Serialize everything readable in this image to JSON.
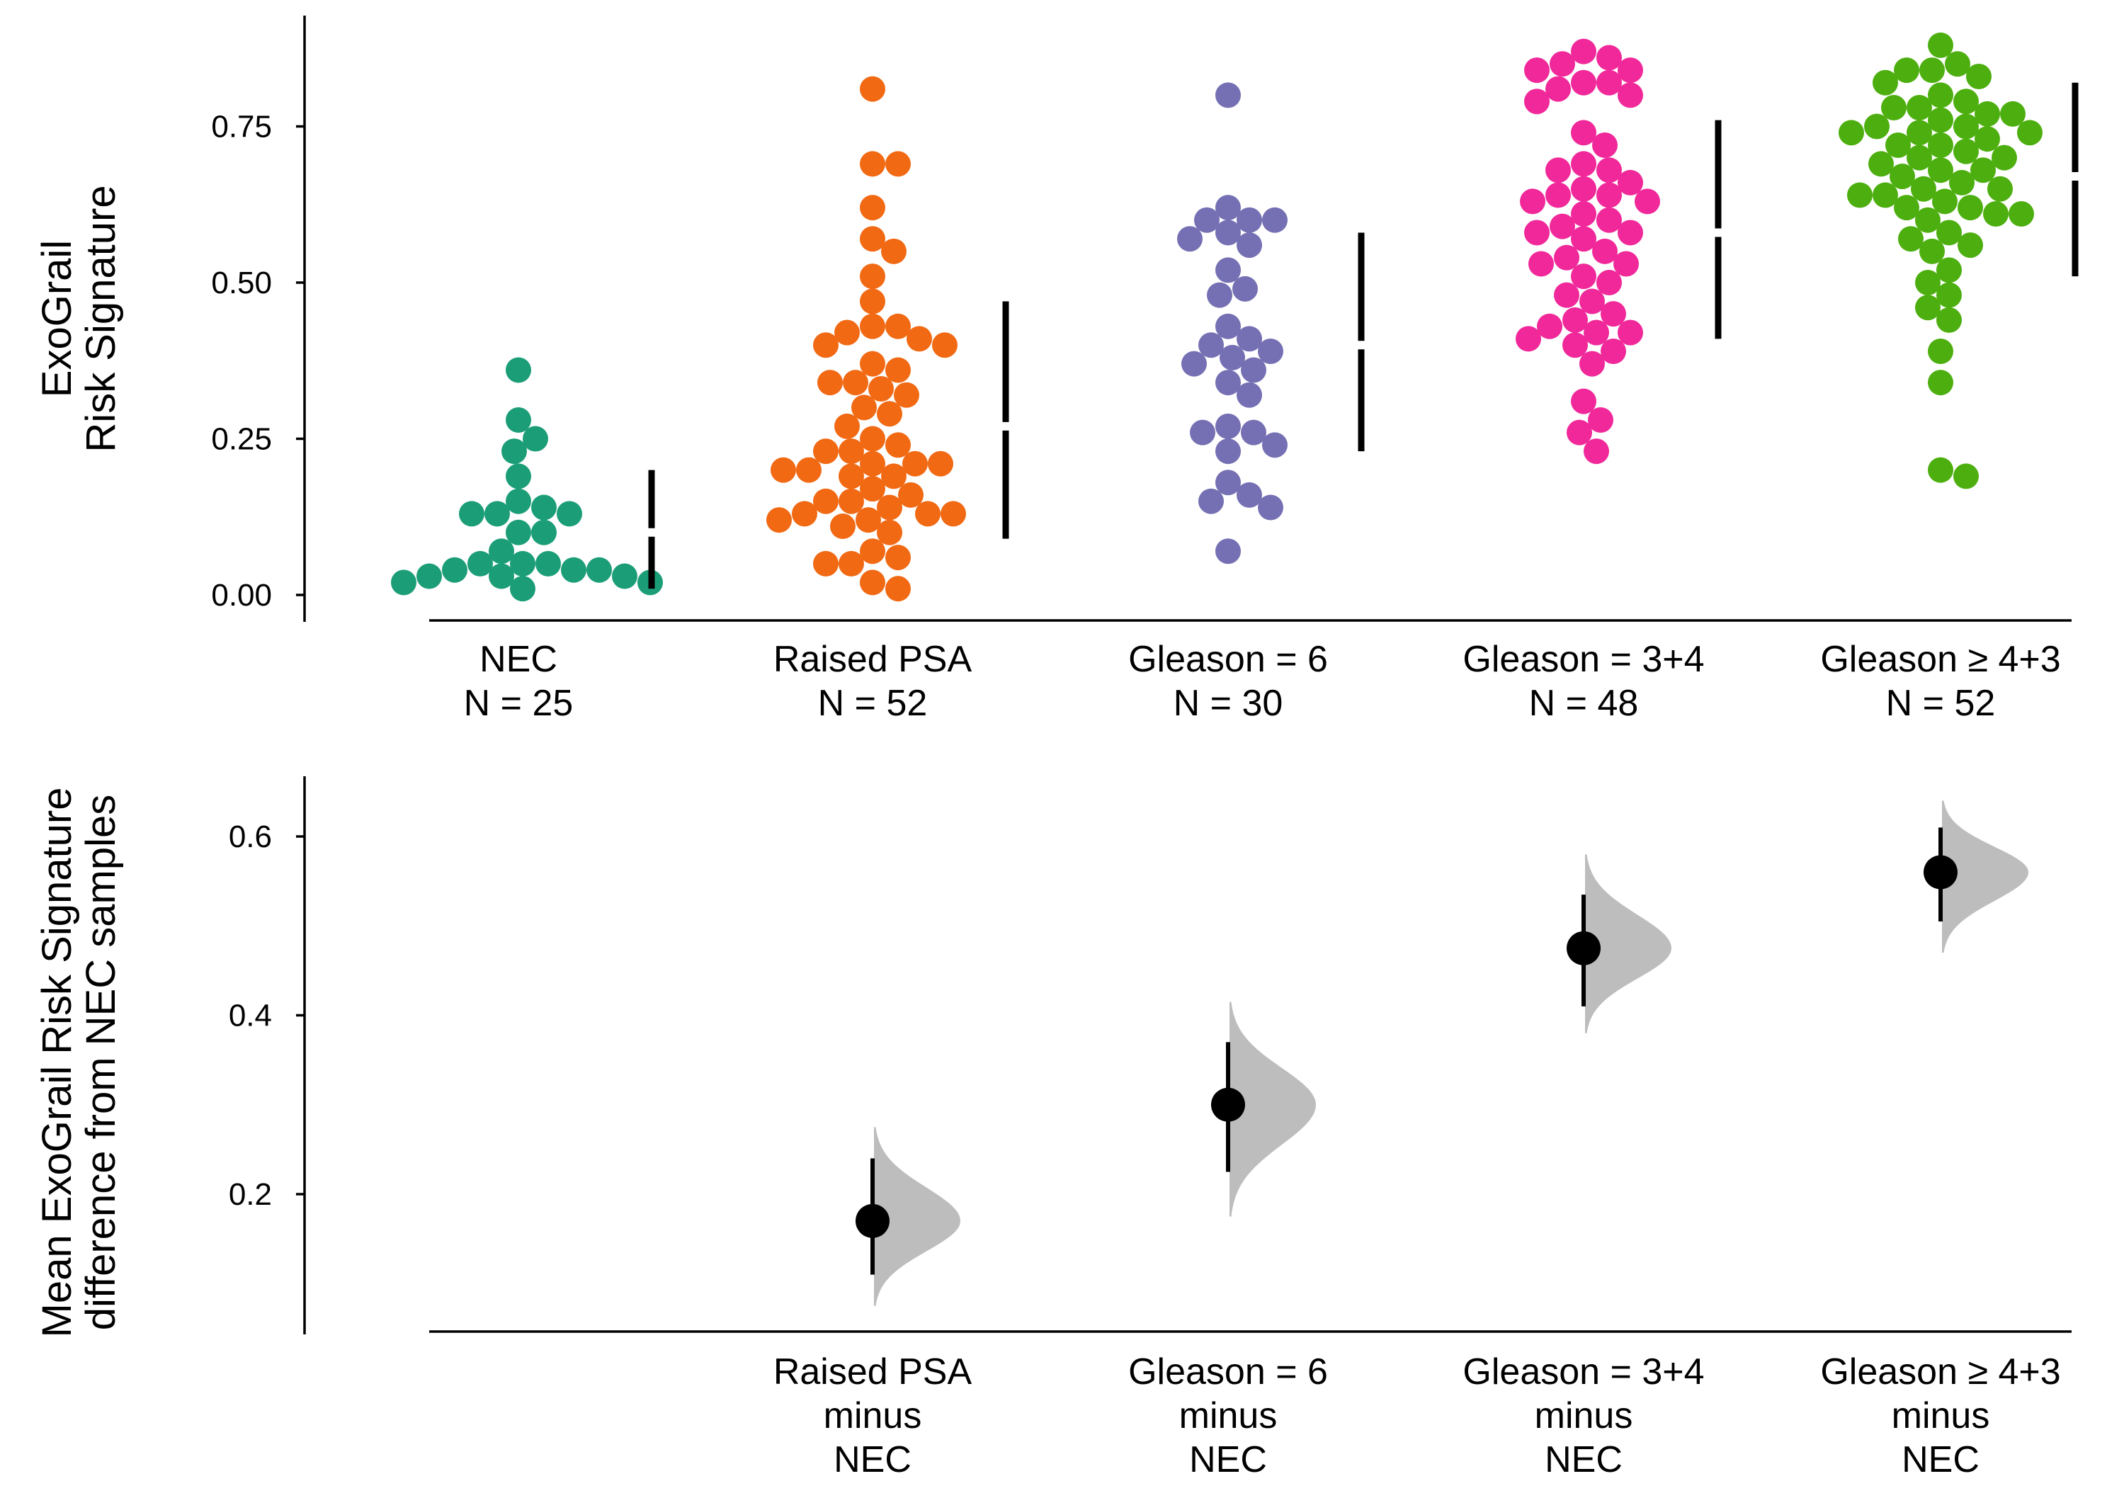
{
  "chart_data": [
    {
      "type": "scatter",
      "subtype": "swarm",
      "ylabel_lines": [
        "ExoGrail",
        "Risk Signature"
      ],
      "ylim": [
        0,
        0.9
      ],
      "yticks": [
        "0.00",
        "0.25",
        "0.50",
        "0.75"
      ],
      "ytick_values": [
        0,
        0.25,
        0.5,
        0.75
      ],
      "groups": [
        {
          "name": "NEC",
          "n_label": "N = 25",
          "color": "#1b9e77",
          "summary": {
            "mean": 0.1,
            "lower": 0.01,
            "upper": 0.2
          },
          "values": [
            0.36,
            0.28,
            0.25,
            0.23,
            0.19,
            0.15,
            0.14,
            0.13,
            0.13,
            0.13,
            0.1,
            0.1,
            0.07,
            0.05,
            0.05,
            0.05,
            0.04,
            0.04,
            0.04,
            0.03,
            0.03,
            0.03,
            0.02,
            0.02,
            0.01
          ]
        },
        {
          "name": "Raised PSA",
          "n_label": "N = 52",
          "color": "#f16913",
          "summary": {
            "mean": 0.27,
            "lower": 0.09,
            "upper": 0.47
          },
          "values": [
            0.81,
            0.69,
            0.69,
            0.62,
            0.57,
            0.55,
            0.51,
            0.47,
            0.43,
            0.43,
            0.42,
            0.41,
            0.4,
            0.4,
            0.37,
            0.36,
            0.34,
            0.34,
            0.33,
            0.32,
            0.3,
            0.29,
            0.27,
            0.25,
            0.24,
            0.23,
            0.23,
            0.21,
            0.21,
            0.21,
            0.2,
            0.2,
            0.19,
            0.19,
            0.17,
            0.16,
            0.15,
            0.15,
            0.14,
            0.13,
            0.13,
            0.13,
            0.12,
            0.12,
            0.11,
            0.1,
            0.07,
            0.06,
            0.05,
            0.05,
            0.02,
            0.01
          ]
        },
        {
          "name": "Gleason = 6",
          "n_label": "N = 30",
          "color": "#7570b3",
          "summary": {
            "mean": 0.4,
            "lower": 0.23,
            "upper": 0.58
          },
          "values": [
            0.8,
            0.62,
            0.6,
            0.6,
            0.6,
            0.58,
            0.57,
            0.56,
            0.52,
            0.49,
            0.48,
            0.43,
            0.41,
            0.4,
            0.39,
            0.38,
            0.37,
            0.36,
            0.34,
            0.32,
            0.27,
            0.26,
            0.26,
            0.24,
            0.23,
            0.18,
            0.16,
            0.15,
            0.14,
            0.07
          ]
        },
        {
          "name": "Gleason = 3+4",
          "n_label": "N = 48",
          "color": "#f0289a",
          "summary": {
            "mean": 0.58,
            "lower": 0.41,
            "upper": 0.76
          },
          "values": [
            0.87,
            0.86,
            0.85,
            0.84,
            0.84,
            0.82,
            0.82,
            0.81,
            0.8,
            0.79,
            0.74,
            0.72,
            0.69,
            0.68,
            0.68,
            0.66,
            0.65,
            0.64,
            0.64,
            0.63,
            0.63,
            0.61,
            0.6,
            0.59,
            0.58,
            0.58,
            0.57,
            0.55,
            0.54,
            0.53,
            0.53,
            0.51,
            0.5,
            0.48,
            0.47,
            0.45,
            0.44,
            0.43,
            0.42,
            0.42,
            0.41,
            0.4,
            0.39,
            0.37,
            0.31,
            0.28,
            0.26,
            0.23
          ]
        },
        {
          "name": "Gleason ≥ 4+3",
          "n_label": "N = 52",
          "color": "#4daf0f",
          "summary": {
            "mean": 0.67,
            "lower": 0.51,
            "upper": 0.82
          },
          "values": [
            0.88,
            0.85,
            0.84,
            0.84,
            0.83,
            0.82,
            0.8,
            0.79,
            0.78,
            0.78,
            0.77,
            0.77,
            0.76,
            0.75,
            0.75,
            0.74,
            0.74,
            0.74,
            0.73,
            0.72,
            0.72,
            0.71,
            0.7,
            0.7,
            0.69,
            0.68,
            0.68,
            0.67,
            0.66,
            0.65,
            0.65,
            0.64,
            0.64,
            0.63,
            0.62,
            0.61,
            0.61,
            0.6,
            0.58,
            0.57,
            0.56,
            0.55,
            0.52,
            0.5,
            0.48,
            0.46,
            0.44,
            0.39,
            0.34,
            0.2,
            0.19,
            0.62
          ]
        }
      ]
    },
    {
      "type": "scatter",
      "subtype": "mean-difference",
      "ylabel_lines": [
        "Mean ExoGrail Risk Signature",
        "difference from NEC samples"
      ],
      "ylim": [
        0.05,
        0.67
      ],
      "yticks": [
        "0.2",
        "0.4",
        "0.6"
      ],
      "ytick_values": [
        0.2,
        0.4,
        0.6
      ],
      "comparisons": [
        {
          "label_lines": [
            "Raised PSA",
            "minus",
            "NEC"
          ],
          "group_index": 1,
          "mean": 0.17,
          "ci_lower": 0.11,
          "ci_upper": 0.24,
          "dist_lower": 0.075,
          "dist_upper": 0.275
        },
        {
          "label_lines": [
            "Gleason = 6",
            "minus",
            "NEC"
          ],
          "group_index": 2,
          "mean": 0.3,
          "ci_lower": 0.225,
          "ci_upper": 0.37,
          "dist_lower": 0.175,
          "dist_upper": 0.415
        },
        {
          "label_lines": [
            "Gleason = 3+4",
            "minus",
            "NEC"
          ],
          "group_index": 3,
          "mean": 0.475,
          "ci_lower": 0.41,
          "ci_upper": 0.535,
          "dist_lower": 0.38,
          "dist_upper": 0.58
        },
        {
          "label_lines": [
            "Gleason ≥ 4+3",
            "minus",
            "NEC"
          ],
          "group_index": 4,
          "mean": 0.56,
          "ci_lower": 0.505,
          "ci_upper": 0.61,
          "dist_lower": 0.47,
          "dist_upper": 0.64
        }
      ],
      "dist_color": "#bdbdbd"
    }
  ]
}
